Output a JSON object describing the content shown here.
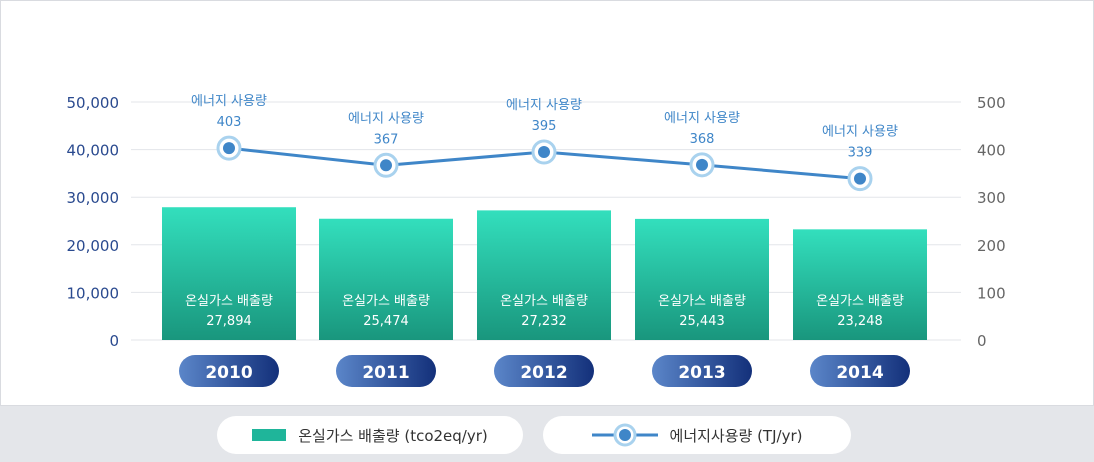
{
  "chart_data": {
    "type": "bar",
    "categories": [
      "2010",
      "2011",
      "2012",
      "2013",
      "2014"
    ],
    "left_axis": {
      "ticks": [
        "50,000",
        "40,000",
        "30,000",
        "20,000",
        "10,000",
        "0"
      ],
      "ylim": [
        0,
        50000
      ]
    },
    "right_axis": {
      "ticks": [
        "500",
        "400",
        "300",
        "200",
        "100",
        "0"
      ],
      "ylim": [
        0,
        500
      ]
    },
    "series": [
      {
        "name": "온실가스 배출량 (tco2eq/yr)",
        "type": "bar",
        "axis": "left",
        "label": "온실가스 배출량",
        "value_labels": [
          "27,894",
          "25,474",
          "27,232",
          "25,443",
          "23,248"
        ],
        "values": [
          27894,
          25474,
          27232,
          25443,
          23248
        ]
      },
      {
        "name": "에너지사용량 (TJ/yr)",
        "type": "line",
        "axis": "right",
        "label": "에너지 사용량",
        "values": [
          403,
          367,
          395,
          368,
          339
        ]
      }
    ],
    "colors": {
      "bar_top": "#33dfbd",
      "bar_bottom": "#19967d",
      "line": "#3f86c8",
      "axis_text": "#2a4a8f",
      "pill_light": "#5b86c9",
      "pill_dark": "#13307a"
    },
    "grid": true
  },
  "legend": {
    "bar_label": "온실가스 배출량 (tco2eq/yr)",
    "line_label": "에너지사용량 (TJ/yr)"
  }
}
